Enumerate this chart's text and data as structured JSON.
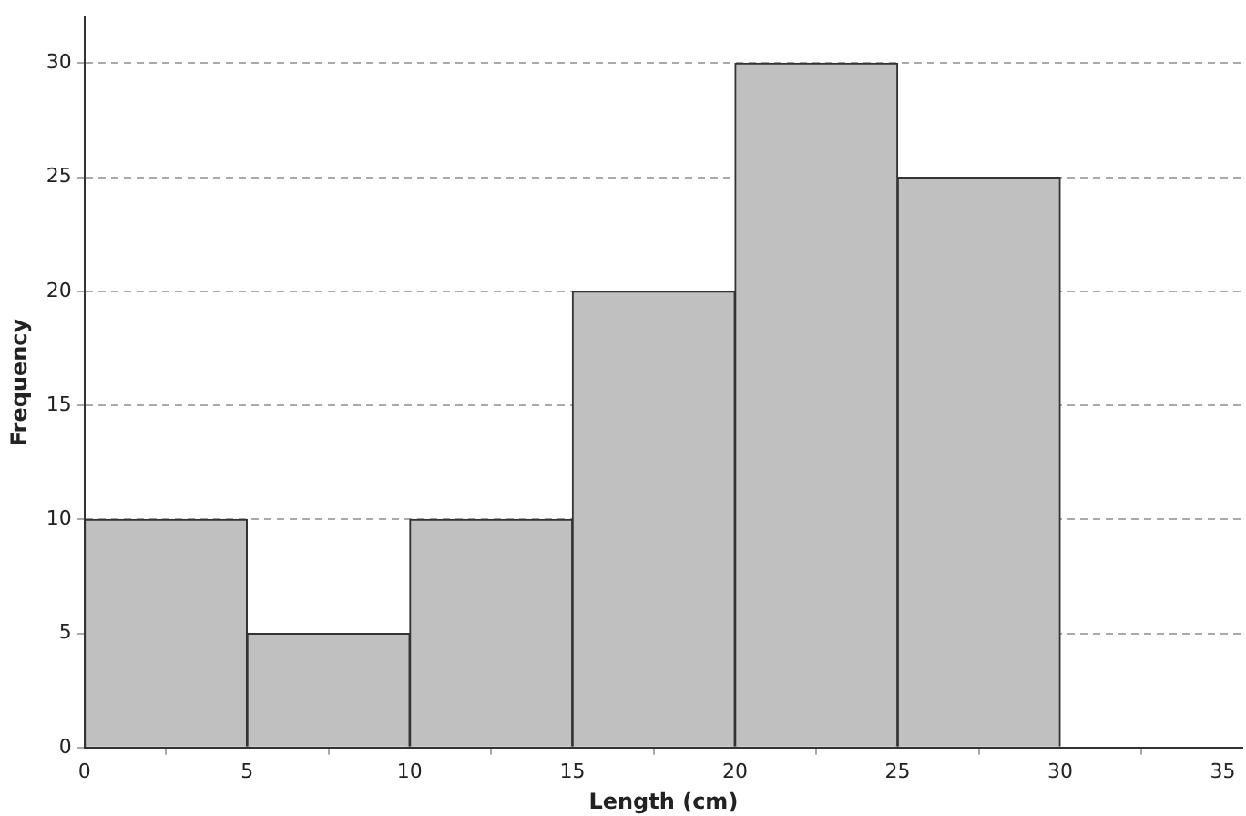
{
  "chart_data": {
    "type": "histogram",
    "xlabel": "Length (cm)",
    "ylabel": "Frequency",
    "bins": [
      0,
      5,
      10,
      15,
      20,
      25,
      30
    ],
    "values": [
      10,
      5,
      10,
      20,
      30,
      25
    ],
    "color": "#c0c0c0",
    "xlim": [
      0,
      35.6
    ],
    "xticks": [
      0,
      5,
      10,
      15,
      20,
      25,
      30,
      35
    ],
    "ylim": [
      0,
      32
    ],
    "yticks": [
      0,
      5,
      10,
      15,
      20,
      25,
      30
    ],
    "grid": "y"
  }
}
